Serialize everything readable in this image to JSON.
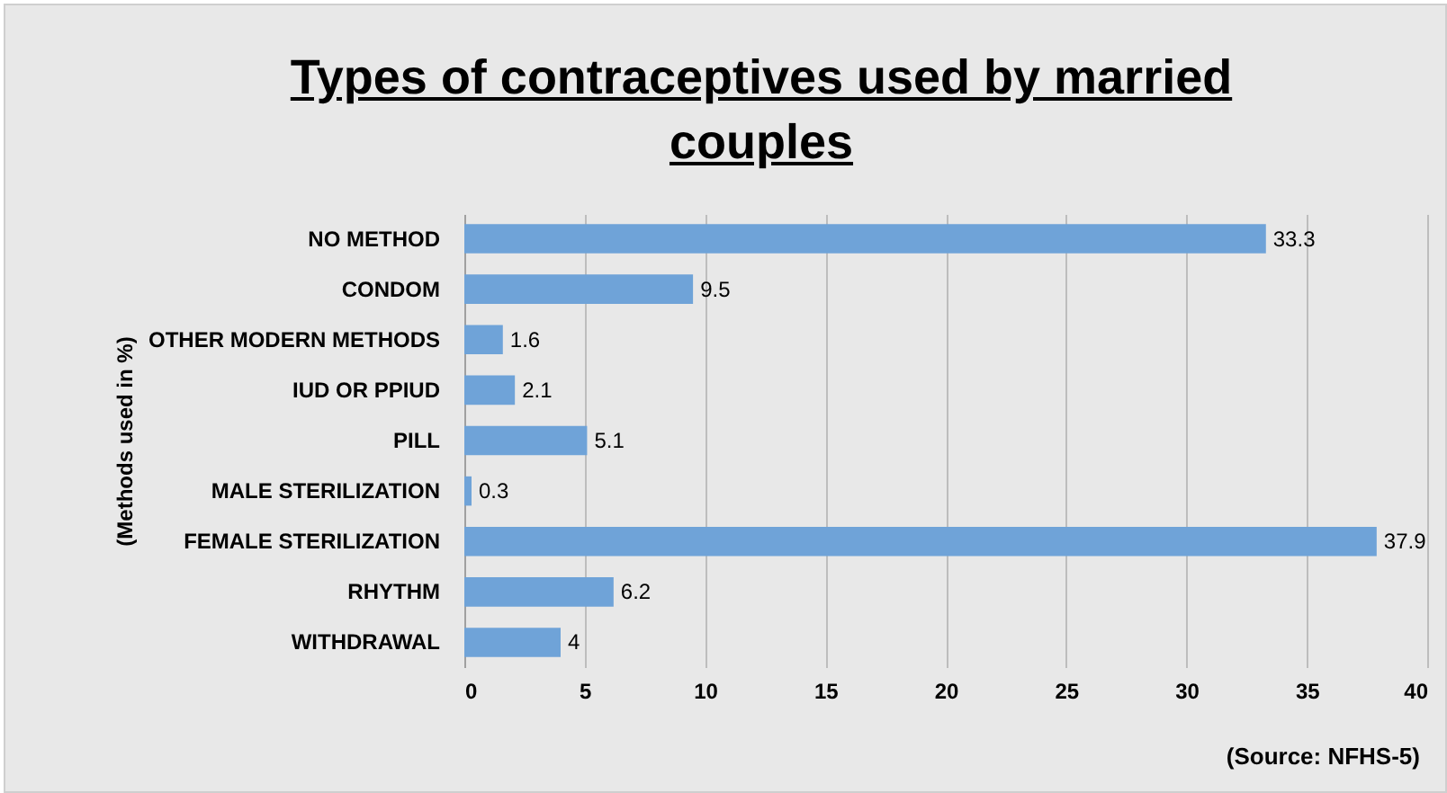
{
  "chart_data": {
    "type": "bar",
    "orientation": "horizontal",
    "title": "Types of contraceptives used by married couples",
    "ylabel": "(Methods used in %)",
    "annotations": [
      "(Source: NFHS-5)"
    ],
    "categories": [
      "NO METHOD",
      "CONDOM",
      "OTHER MODERN METHODS",
      "IUD OR PPIUD",
      "PILL",
      "MALE STERILIZATION",
      "FEMALE STERILIZATION",
      "RHYTHM",
      "WITHDRAWAL"
    ],
    "values": [
      33.3,
      9.5,
      1.6,
      2.1,
      5.1,
      0.3,
      37.9,
      6.2,
      4
    ],
    "color": "#6fa3d8",
    "xlim": [
      0,
      40
    ],
    "xticks": [
      0,
      5,
      10,
      15,
      20,
      25,
      30,
      35,
      40
    ],
    "grid": "x",
    "data_labels": true
  }
}
